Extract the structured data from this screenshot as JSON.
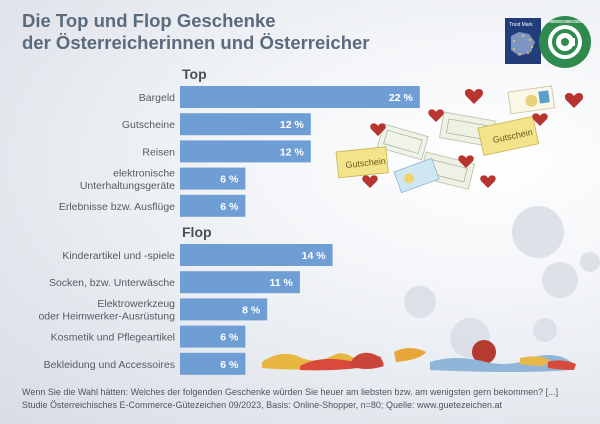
{
  "title_lines": [
    "Die Top und Flop Geschenke",
    "der Österreicherinnen und Österreicher"
  ],
  "logo": {
    "badge_text": "Trust Mark",
    "seal_text": "ÖSTERREICHISCHES E-COMMERCE-GÜTEZEICHEN"
  },
  "colors": {
    "bar": "#6f9ed4",
    "title": "#5b6b7e",
    "heart": "#b8342f"
  },
  "chart_data": [
    {
      "type": "bar",
      "orientation": "horizontal",
      "title": "Top",
      "categories": [
        "Bargeld",
        "Gutscheine",
        "Reisen",
        "elektronische Unterhaltungsgeräte",
        "Erlebnisse bzw. Ausflüge"
      ],
      "category_lines": [
        [
          "Bargeld"
        ],
        [
          "Gutscheine"
        ],
        [
          "Reisen"
        ],
        [
          "elektronische",
          "Unterhaltungsgeräte"
        ],
        [
          "Erlebnisse bzw. Ausflüge"
        ]
      ],
      "values": [
        22,
        12,
        12,
        6,
        6
      ],
      "value_labels": [
        "22 %",
        "12 %",
        "12 %",
        "6 %",
        "6 %"
      ],
      "unit": "%"
    },
    {
      "type": "bar",
      "orientation": "horizontal",
      "title": "Flop",
      "categories": [
        "Kinderartikel und -spiele",
        "Socken, bzw. Unterwäsche",
        "Elektrowerkzeug oder Heimwerker-Ausrüstung",
        "Kosmetik und Pflegeartikel",
        "Bekleidung und Accessoires"
      ],
      "category_lines": [
        [
          "Kinderartikel und -spiele"
        ],
        [
          "Socken, bzw. Unterwäsche"
        ],
        [
          "Elektrowerkzeug",
          "oder Heimwerker-Ausrüstung"
        ],
        [
          "Kosmetik und Pflegeartikel"
        ],
        [
          "Bekleidung und Accessoires"
        ]
      ],
      "values": [
        14,
        11,
        8,
        6,
        6
      ],
      "value_labels": [
        "14 %",
        "11 %",
        "8 %",
        "6 %",
        "6 %"
      ],
      "unit": "%"
    }
  ],
  "illustration_labels": [
    "Gutschein",
    "Gutschein"
  ],
  "footer": {
    "question": "Wenn Sie die Wahl hätten: Welches der folgenden Geschenke würden Sie heuer am liebsten bzw. am wenigsten gern bekommen? [...]",
    "source": "Studie Österreichisches E-Commerce-Gütezeichen 09/2023, Basis: Online-Shopper, n=80; Quelle: www.guetezeichen.at"
  }
}
